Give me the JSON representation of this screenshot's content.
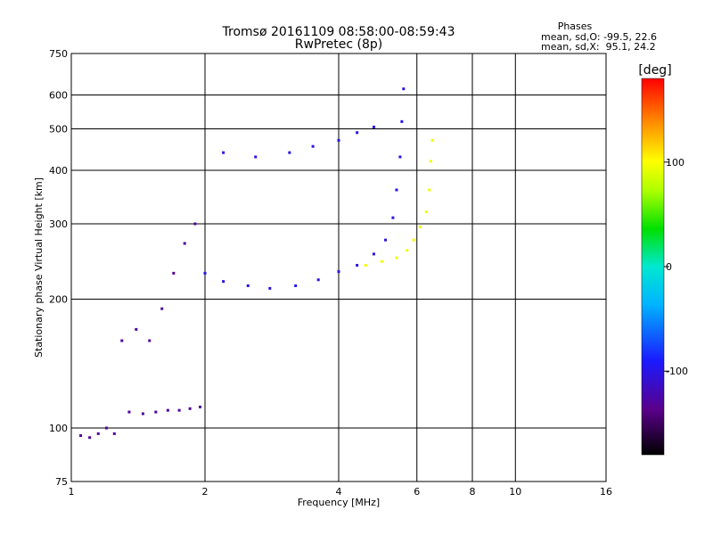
{
  "title": "Tromsø 20161109 08:58:00-08:59:43",
  "subtitle": "RwPretec (8p)",
  "phases_box": {
    "heading": "Phases",
    "line_o": "mean, sd,O: -99.5, 22.6",
    "line_x": "mean, sd,X:  95.1, 24.2"
  },
  "colorbar": {
    "unit_label": "[deg]",
    "ticks": [
      {
        "value": 100,
        "label": "100"
      },
      {
        "value": 0,
        "label": "0"
      },
      {
        "value": -100,
        "label": "-100"
      }
    ],
    "range": [
      -180,
      180
    ]
  },
  "chart_data": {
    "type": "scatter",
    "title": "Tromsø 20161109 08:58:00-08:59:43",
    "subtitle": "RwPretec (8p)",
    "xlabel": "Frequency [MHz]",
    "ylabel": "Stationary phase Virtual Height [km]",
    "xscale": "log",
    "yscale": "log",
    "xlim": [
      1,
      16
    ],
    "ylim": [
      75,
      750
    ],
    "xticks": [
      1,
      2,
      4,
      6,
      8,
      10,
      16
    ],
    "xtick_labels": [
      "1",
      "2",
      "4",
      "6",
      "8",
      "10",
      "16"
    ],
    "yticks": [
      75,
      100,
      200,
      300,
      400,
      500,
      600,
      750
    ],
    "ytick_labels": [
      "75",
      "100",
      "200",
      "300",
      "400",
      "500",
      "600",
      "750"
    ],
    "grid": true,
    "color_scale": "phase [deg], -180 to 180",
    "series": [
      {
        "color_phase": -130,
        "points": [
          [
            1.05,
            96
          ],
          [
            1.1,
            95
          ],
          [
            1.15,
            97
          ],
          [
            1.2,
            100
          ],
          [
            1.25,
            97
          ],
          [
            1.35,
            109
          ],
          [
            1.45,
            108
          ],
          [
            1.55,
            109
          ],
          [
            1.65,
            110
          ],
          [
            1.75,
            110
          ],
          [
            1.85,
            111
          ],
          [
            1.95,
            112
          ],
          [
            1.3,
            160
          ],
          [
            1.4,
            170
          ],
          [
            1.5,
            160
          ],
          [
            1.6,
            190
          ],
          [
            1.7,
            230
          ],
          [
            1.8,
            270
          ],
          [
            1.9,
            300
          ]
        ]
      },
      {
        "color_phase": -100,
        "points": [
          [
            2.0,
            230
          ],
          [
            2.2,
            220
          ],
          [
            2.5,
            215
          ],
          [
            2.8,
            212
          ],
          [
            3.2,
            215
          ],
          [
            3.6,
            222
          ],
          [
            4.0,
            232
          ],
          [
            4.4,
            240
          ],
          [
            4.8,
            255
          ],
          [
            5.1,
            275
          ],
          [
            5.3,
            310
          ],
          [
            5.4,
            360
          ],
          [
            5.5,
            430
          ],
          [
            5.55,
            520
          ],
          [
            5.6,
            620
          ],
          [
            2.2,
            440
          ],
          [
            2.6,
            430
          ],
          [
            3.1,
            440
          ],
          [
            3.5,
            455
          ],
          [
            4.0,
            470
          ],
          [
            4.4,
            490
          ],
          [
            4.8,
            505
          ]
        ]
      },
      {
        "color_phase": 95,
        "points": [
          [
            4.6,
            240
          ],
          [
            5.0,
            245
          ],
          [
            5.4,
            250
          ],
          [
            5.7,
            260
          ],
          [
            5.9,
            275
          ],
          [
            6.1,
            295
          ],
          [
            6.3,
            320
          ],
          [
            6.4,
            360
          ],
          [
            6.45,
            420
          ],
          [
            6.5,
            470
          ]
        ]
      }
    ]
  }
}
